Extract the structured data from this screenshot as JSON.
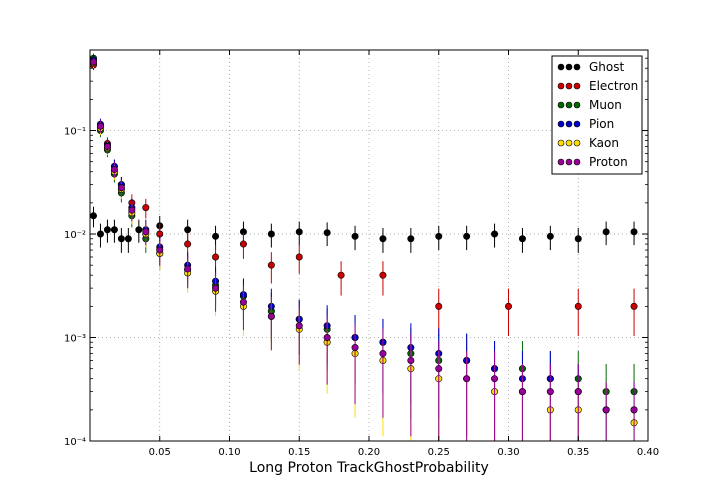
{
  "chart_data": {
    "type": "scatter",
    "title": "",
    "xlabel": "Long Proton TrackGhostProbability",
    "ylabel": "",
    "xlim": [
      0.0,
      0.4
    ],
    "ylim": [
      0.0001,
      0.6
    ],
    "yscale": "log",
    "grid": true,
    "legend_placement": "top-right",
    "x_ticks": [
      0.05,
      0.1,
      0.15,
      0.2,
      0.25,
      0.3,
      0.35,
      0.4
    ],
    "x_tick_labels": [
      "0.05",
      "0.10",
      "0.15",
      "0.20",
      "0.25",
      "0.30",
      "0.35",
      "0.40"
    ],
    "y_ticks": [
      0.0001,
      0.001,
      0.01,
      0.1
    ],
    "y_tick_labels": [
      "10⁻⁴",
      "10⁻³",
      "10⁻²",
      "10⁻¹"
    ],
    "series": [
      {
        "name": "Ghost",
        "color": "#000000",
        "x": [
          0.0025,
          0.0075,
          0.0125,
          0.0175,
          0.0225,
          0.0275,
          0.035,
          0.05,
          0.07,
          0.09,
          0.11,
          0.13,
          0.15,
          0.17,
          0.19,
          0.21,
          0.23,
          0.25,
          0.27,
          0.29,
          0.31,
          0.33,
          0.35,
          0.37,
          0.39
        ],
        "y": [
          0.015,
          0.01,
          0.011,
          0.011,
          0.009,
          0.009,
          0.011,
          0.012,
          0.011,
          0.0095,
          0.0105,
          0.01,
          0.0105,
          0.0103,
          0.0095,
          0.009,
          0.009,
          0.0095,
          0.0095,
          0.01,
          0.009,
          0.0095,
          0.009,
          0.0105,
          0.0105
        ]
      },
      {
        "name": "Electron",
        "color": "#cc0000",
        "x": [
          0.0025,
          0.0075,
          0.0125,
          0.0175,
          0.0225,
          0.03,
          0.04,
          0.05,
          0.07,
          0.09,
          0.11,
          0.13,
          0.15,
          0.18,
          0.21,
          0.25,
          0.3,
          0.35,
          0.39
        ],
        "y": [
          0.43,
          0.11,
          0.075,
          0.045,
          0.03,
          0.02,
          0.018,
          0.01,
          0.008,
          0.006,
          0.008,
          0.005,
          0.006,
          0.004,
          0.004,
          0.002,
          0.002,
          0.002,
          0.002
        ]
      },
      {
        "name": "Muon",
        "color": "#006600",
        "x": [
          0.0025,
          0.0075,
          0.0125,
          0.0175,
          0.0225,
          0.03,
          0.04,
          0.05,
          0.07,
          0.09,
          0.11,
          0.13,
          0.15,
          0.17,
          0.19,
          0.21,
          0.23,
          0.25,
          0.27,
          0.29,
          0.31,
          0.33,
          0.35,
          0.37,
          0.39
        ],
        "y": [
          0.5,
          0.1,
          0.065,
          0.038,
          0.025,
          0.015,
          0.009,
          0.0065,
          0.0045,
          0.0032,
          0.0025,
          0.0018,
          0.0015,
          0.0012,
          0.001,
          0.0009,
          0.0007,
          0.0006,
          0.0006,
          0.0005,
          0.0005,
          0.0004,
          0.0004,
          0.0003,
          0.0003
        ]
      },
      {
        "name": "Pion",
        "color": "#0000cc",
        "x": [
          0.0025,
          0.0075,
          0.0125,
          0.0175,
          0.0225,
          0.03,
          0.04,
          0.05,
          0.07,
          0.09,
          0.11,
          0.13,
          0.15,
          0.17,
          0.19,
          0.21,
          0.23,
          0.25,
          0.27,
          0.29,
          0.31,
          0.33,
          0.35,
          0.37,
          0.39
        ],
        "y": [
          0.48,
          0.115,
          0.072,
          0.045,
          0.03,
          0.018,
          0.011,
          0.0075,
          0.005,
          0.0035,
          0.0026,
          0.002,
          0.0015,
          0.0013,
          0.001,
          0.0009,
          0.0008,
          0.0007,
          0.0006,
          0.0005,
          0.0004,
          0.0004,
          0.0003,
          0.0002,
          0.0002
        ]
      },
      {
        "name": "Kaon",
        "color": "#ffdd00",
        "x": [
          0.0025,
          0.0075,
          0.0125,
          0.0175,
          0.0225,
          0.03,
          0.04,
          0.05,
          0.07,
          0.09,
          0.11,
          0.13,
          0.15,
          0.17,
          0.19,
          0.21,
          0.23,
          0.25,
          0.27,
          0.29,
          0.31,
          0.33,
          0.35,
          0.37,
          0.39
        ],
        "y": [
          0.45,
          0.105,
          0.068,
          0.04,
          0.027,
          0.016,
          0.01,
          0.0065,
          0.0042,
          0.0028,
          0.002,
          0.0016,
          0.0012,
          0.0009,
          0.0007,
          0.0006,
          0.0005,
          0.0004,
          0.0004,
          0.0003,
          0.0003,
          0.0002,
          0.0002,
          0.0002,
          0.00015
        ]
      },
      {
        "name": "Proton",
        "color": "#990099",
        "x": [
          0.0025,
          0.0075,
          0.0125,
          0.0175,
          0.0225,
          0.03,
          0.04,
          0.05,
          0.07,
          0.09,
          0.11,
          0.13,
          0.15,
          0.17,
          0.19,
          0.21,
          0.23,
          0.25,
          0.27,
          0.29,
          0.31,
          0.33,
          0.35,
          0.37,
          0.39
        ],
        "y": [
          0.46,
          0.11,
          0.07,
          0.042,
          0.028,
          0.017,
          0.0105,
          0.007,
          0.0046,
          0.003,
          0.0022,
          0.0016,
          0.0013,
          0.001,
          0.0008,
          0.0007,
          0.0006,
          0.0005,
          0.0004,
          0.0004,
          0.0003,
          0.0003,
          0.0003,
          0.0002,
          0.0002
        ]
      }
    ]
  }
}
